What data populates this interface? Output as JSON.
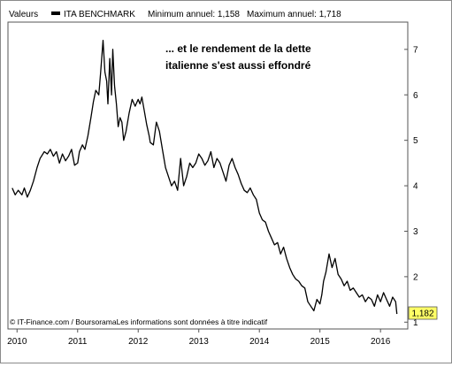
{
  "header": {
    "valeurs_label": "Valeurs",
    "series_name": "ITA BENCHMARK",
    "min_label": "Minimum annuel: 1,158",
    "max_label": "Maximum annuel: 1,718"
  },
  "annotation": {
    "line1": "... et le rendement de la dette",
    "line2": "italienne s'est aussi effondré"
  },
  "footer": {
    "credit": "© IT-Finance.com / BoursoramaLes informations sont données à titre indicatif"
  },
  "last_value_label": "1,182",
  "colors": {
    "line": "#000000",
    "last_value_badge": "#ffff66",
    "chart_border": "#555555",
    "outer_border": "#8a8a8a"
  },
  "chart_data": {
    "type": "line",
    "title": "",
    "xlabel": "",
    "ylabel": "",
    "x_ticks": [
      "2010",
      "2011",
      "2012",
      "2013",
      "2014",
      "2015",
      "2016"
    ],
    "x_tick_values": [
      2010,
      2011,
      2012,
      2013,
      2014,
      2015,
      2016
    ],
    "y_ticks": [
      "1",
      "2",
      "3",
      "4",
      "5",
      "6",
      "7"
    ],
    "y_tick_values": [
      1,
      2,
      3,
      4,
      5,
      6,
      7
    ],
    "xlim": [
      2009.85,
      2016.45
    ],
    "ylim": [
      0.85,
      7.6
    ],
    "y_axis_position": "right",
    "grid": false,
    "series": [
      {
        "name": "ITA BENCHMARK",
        "x": [
          2009.92,
          2009.97,
          2010.02,
          2010.08,
          2010.12,
          2010.17,
          2010.22,
          2010.27,
          2010.33,
          2010.38,
          2010.45,
          2010.5,
          2010.55,
          2010.6,
          2010.65,
          2010.7,
          2010.75,
          2010.8,
          2010.85,
          2010.9,
          2010.95,
          2011.0,
          2011.03,
          2011.08,
          2011.12,
          2011.17,
          2011.22,
          2011.26,
          2011.3,
          2011.35,
          2011.38,
          2011.42,
          2011.45,
          2011.48,
          2011.5,
          2011.53,
          2011.56,
          2011.58,
          2011.61,
          2011.64,
          2011.67,
          2011.7,
          2011.73,
          2011.76,
          2011.8,
          2011.85,
          2011.9,
          2011.95,
          2012.0,
          2012.03,
          2012.06,
          2012.1,
          2012.14,
          2012.18,
          2012.2,
          2012.25,
          2012.3,
          2012.35,
          2012.4,
          2012.45,
          2012.5,
          2012.55,
          2012.6,
          2012.65,
          2012.7,
          2012.75,
          2012.8,
          2012.85,
          2012.9,
          2012.95,
          2013.0,
          2013.05,
          2013.1,
          2013.15,
          2013.2,
          2013.25,
          2013.3,
          2013.35,
          2013.4,
          2013.45,
          2013.5,
          2013.55,
          2013.6,
          2013.65,
          2013.7,
          2013.75,
          2013.8,
          2013.85,
          2013.9,
          2013.95,
          2014.0,
          2014.05,
          2014.1,
          2014.15,
          2014.2,
          2014.25,
          2014.3,
          2014.35,
          2014.4,
          2014.45,
          2014.5,
          2014.55,
          2014.6,
          2014.65,
          2014.7,
          2014.75,
          2014.8,
          2014.85,
          2014.9,
          2014.95,
          2015.0,
          2015.03,
          2015.06,
          2015.1,
          2015.15,
          2015.2,
          2015.25,
          2015.3,
          2015.35,
          2015.4,
          2015.45,
          2015.5,
          2015.55,
          2015.6,
          2015.65,
          2015.7,
          2015.75,
          2015.8,
          2015.85,
          2015.9,
          2015.95,
          2016.0,
          2016.05,
          2016.1,
          2016.15,
          2016.2,
          2016.25,
          2016.27
        ],
        "values": [
          3.95,
          3.8,
          3.9,
          3.8,
          3.95,
          3.75,
          3.9,
          4.1,
          4.4,
          4.6,
          4.75,
          4.7,
          4.8,
          4.65,
          4.75,
          4.5,
          4.7,
          4.55,
          4.65,
          4.8,
          4.45,
          4.5,
          4.75,
          4.9,
          4.8,
          5.1,
          5.5,
          5.85,
          6.1,
          6.0,
          6.5,
          7.2,
          6.5,
          6.3,
          5.8,
          6.8,
          6.0,
          7.0,
          6.2,
          5.8,
          5.3,
          5.5,
          5.4,
          5.0,
          5.2,
          5.6,
          5.9,
          5.75,
          5.9,
          5.8,
          5.95,
          5.65,
          5.35,
          5.1,
          4.95,
          4.9,
          5.4,
          5.2,
          4.8,
          4.4,
          4.2,
          4.0,
          4.1,
          3.9,
          4.6,
          4.0,
          4.2,
          4.5,
          4.4,
          4.5,
          4.7,
          4.6,
          4.45,
          4.55,
          4.75,
          4.4,
          4.6,
          4.5,
          4.3,
          4.1,
          4.45,
          4.6,
          4.4,
          4.25,
          4.05,
          3.9,
          3.85,
          3.95,
          3.8,
          3.7,
          3.4,
          3.25,
          3.2,
          3.0,
          2.85,
          2.7,
          2.75,
          2.5,
          2.65,
          2.4,
          2.2,
          2.05,
          1.95,
          1.9,
          1.8,
          1.75,
          1.45,
          1.35,
          1.25,
          1.5,
          1.4,
          1.6,
          1.9,
          2.1,
          2.5,
          2.2,
          2.4,
          2.05,
          1.95,
          1.8,
          1.9,
          1.7,
          1.75,
          1.65,
          1.55,
          1.6,
          1.45,
          1.55,
          1.5,
          1.35,
          1.6,
          1.45,
          1.65,
          1.5,
          1.35,
          1.55,
          1.45,
          1.18
        ]
      }
    ]
  }
}
